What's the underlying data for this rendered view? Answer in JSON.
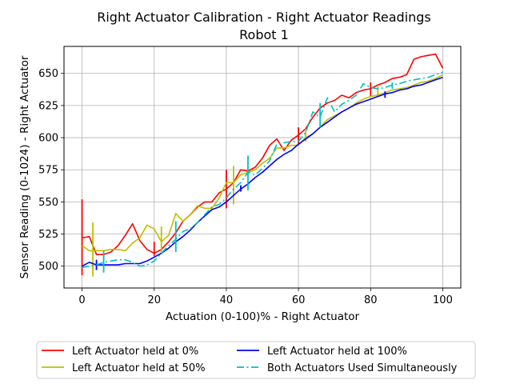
{
  "chart_data": {
    "type": "line",
    "title": "Right Actuator Calibration - Right Actuator Readings",
    "subtitle": "Robot 1",
    "xlabel": "Actuation (0-100)% - Right Actuator",
    "ylabel": "Sensor Reading (0-1024) - Right Actuator",
    "xlim": [
      -5,
      105
    ],
    "ylim": [
      483,
      671
    ],
    "xticks": [
      0,
      20,
      40,
      60,
      80,
      100
    ],
    "yticks": [
      500,
      525,
      550,
      575,
      600,
      625,
      650
    ],
    "grid": true,
    "legend_position": "bottom-center",
    "series": [
      {
        "name": "Left Actuator held at 0%",
        "color": "#ff0000",
        "style": "solid",
        "x": [
          0,
          2,
          4,
          6,
          8,
          10,
          12,
          14,
          16,
          18,
          20,
          22,
          24,
          26,
          28,
          30,
          32,
          34,
          36,
          38,
          40,
          42,
          44,
          46,
          48,
          50,
          52,
          54,
          56,
          58,
          60,
          62,
          64,
          66,
          68,
          70,
          72,
          74,
          76,
          78,
          80,
          82,
          84,
          86,
          88,
          90,
          92,
          94,
          96,
          98,
          100
        ],
        "y": [
          522,
          523,
          509,
          509,
          511,
          516,
          524,
          533,
          520,
          513,
          510,
          513,
          519,
          526,
          535,
          540,
          546,
          550,
          550,
          557,
          560,
          565,
          575,
          574,
          577,
          584,
          594,
          599,
          590,
          598,
          602,
          607,
          616,
          623,
          627,
          629,
          633,
          631,
          635,
          637,
          638,
          641,
          643,
          646,
          647,
          649,
          661,
          663,
          664,
          665,
          654
        ],
        "error_bars": [
          {
            "x": 0,
            "low": 493,
            "high": 552
          },
          {
            "x": 20,
            "low": 508,
            "high": 519
          },
          {
            "x": 40,
            "low": 545,
            "high": 575
          },
          {
            "x": 60,
            "low": 594,
            "high": 608
          },
          {
            "x": 80,
            "low": 632,
            "high": 643
          }
        ]
      },
      {
        "name": "Left Actuator held at 50%",
        "color": "#bfbf00",
        "style": "solid",
        "x": [
          0,
          2,
          4,
          6,
          8,
          10,
          12,
          14,
          16,
          18,
          20,
          22,
          24,
          26,
          28,
          30,
          32,
          34,
          36,
          38,
          40,
          42,
          44,
          46,
          48,
          50,
          52,
          54,
          56,
          58,
          60,
          62,
          64,
          66,
          68,
          70,
          72,
          74,
          76,
          78,
          80,
          82,
          84,
          86,
          88,
          90,
          92,
          94,
          96,
          98,
          100
        ],
        "y": [
          516,
          512,
          512,
          512,
          513,
          513,
          512,
          518,
          522,
          532,
          529,
          519,
          524,
          541,
          535,
          540,
          547,
          545,
          545,
          553,
          565,
          565,
          571,
          573,
          575,
          580,
          584,
          592,
          592,
          594,
          594,
          600,
          603,
          608,
          614,
          617,
          620,
          623,
          627,
          630,
          632,
          633,
          635,
          637,
          638,
          639,
          641,
          643,
          644,
          646,
          649
        ],
        "error_bars": [
          {
            "x": 3,
            "low": 492,
            "high": 534
          },
          {
            "x": 22,
            "low": 511,
            "high": 531
          },
          {
            "x": 42,
            "low": 548,
            "high": 578
          },
          {
            "x": 62,
            "low": 597,
            "high": 607
          },
          {
            "x": 82,
            "low": 632,
            "high": 640
          }
        ]
      },
      {
        "name": "Left Actuator held at 100%",
        "color": "#0000ff",
        "style": "solid",
        "x": [
          0,
          2,
          4,
          6,
          8,
          10,
          12,
          14,
          16,
          18,
          20,
          22,
          24,
          26,
          28,
          30,
          32,
          34,
          36,
          38,
          40,
          42,
          44,
          46,
          48,
          50,
          52,
          54,
          56,
          58,
          60,
          62,
          64,
          66,
          68,
          70,
          72,
          74,
          76,
          78,
          80,
          82,
          84,
          86,
          88,
          90,
          92,
          94,
          96,
          98,
          100
        ],
        "y": [
          500,
          503,
          501,
          501,
          501,
          501,
          502,
          502,
          502,
          504,
          507,
          510,
          514,
          519,
          523,
          528,
          534,
          539,
          544,
          546,
          550,
          555,
          560,
          564,
          569,
          573,
          578,
          583,
          587,
          590,
          595,
          599,
          603,
          608,
          612,
          616,
          620,
          623,
          626,
          628,
          630,
          632,
          634,
          635,
          637,
          638,
          640,
          641,
          643,
          645,
          647
        ],
        "error_bars": [
          {
            "x": 4,
            "low": 497,
            "high": 505
          },
          {
            "x": 44,
            "low": 558,
            "high": 563
          },
          {
            "x": 84,
            "low": 631,
            "high": 636
          }
        ]
      },
      {
        "name": "Both Actuators Used Simultaneously",
        "color": "#00bfbf",
        "style": "dashdot",
        "x": [
          0,
          2,
          4,
          6,
          8,
          10,
          12,
          14,
          16,
          18,
          20,
          22,
          24,
          26,
          28,
          30,
          32,
          34,
          36,
          38,
          40,
          42,
          44,
          46,
          48,
          50,
          52,
          54,
          56,
          58,
          60,
          62,
          64,
          66,
          68,
          70,
          72,
          74,
          76,
          78,
          80,
          82,
          84,
          86,
          88,
          90,
          92,
          94,
          96,
          98,
          100
        ],
        "y": [
          499,
          500,
          501,
          503,
          504,
          505,
          505,
          503,
          500,
          501,
          504,
          510,
          516,
          521,
          527,
          529,
          534,
          540,
          546,
          548,
          553,
          560,
          565,
          573,
          571,
          576,
          582,
          595,
          596,
          597,
          597,
          604,
          620,
          616,
          631,
          620,
          626,
          629,
          633,
          642,
          639,
          638,
          639,
          641,
          642,
          644,
          645,
          646,
          647,
          649,
          651
        ],
        "error_bars": [
          {
            "x": 6,
            "low": 495,
            "high": 512
          },
          {
            "x": 26,
            "low": 511,
            "high": 535
          },
          {
            "x": 46,
            "low": 559,
            "high": 586
          },
          {
            "x": 66,
            "low": 608,
            "high": 627
          },
          {
            "x": 86,
            "low": 638,
            "high": 643
          }
        ]
      }
    ]
  }
}
